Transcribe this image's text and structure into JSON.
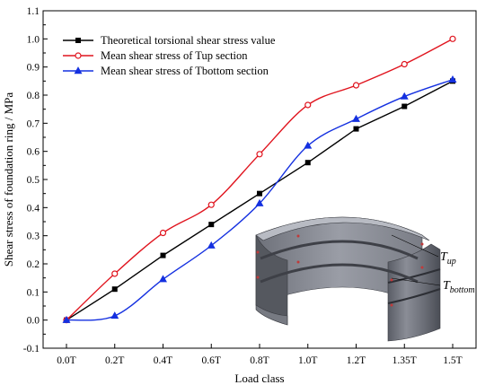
{
  "chart_data": {
    "type": "line",
    "xlabel": "Load class",
    "ylabel": "Shear stress of foundation ring / MPa",
    "categories": [
      "0.0T",
      "0.2T",
      "0.4T",
      "0.6T",
      "0.8T",
      "1.0T",
      "1.2T",
      "1.35T",
      "1.5T"
    ],
    "ylim": [
      -0.1,
      1.1
    ],
    "yticks": [
      -0.1,
      0.0,
      0.1,
      0.2,
      0.3,
      0.4,
      0.5,
      0.6,
      0.7,
      0.8,
      0.9,
      1.0,
      1.1
    ],
    "ytick_labels": [
      "-0.1",
      "0.0",
      "0.1",
      "0.2",
      "0.3",
      "0.4",
      "0.5",
      "0.6",
      "0.7",
      "0.8",
      "0.9",
      "1.0",
      "1.1"
    ],
    "grid": false,
    "legend_position": "top-left",
    "series": [
      {
        "name": "Theoretical torsional shear stress value",
        "color": "#000000",
        "marker": "square",
        "values": [
          0.0,
          0.11,
          0.23,
          0.34,
          0.45,
          0.56,
          0.68,
          0.76,
          0.85
        ]
      },
      {
        "name": "Mean shear stress of Tup section",
        "color": "#e0141e",
        "marker": "circle",
        "values": [
          0.0,
          0.165,
          0.31,
          0.41,
          0.59,
          0.765,
          0.835,
          0.91,
          1.0
        ]
      },
      {
        "name": "Mean shear stress of Tbottom section",
        "color": "#1430e0",
        "marker": "triangle",
        "values": [
          0.0,
          0.015,
          0.145,
          0.265,
          0.415,
          0.62,
          0.715,
          0.795,
          0.855
        ]
      }
    ]
  },
  "inset": {
    "label_up": "T",
    "label_up_sub": "up",
    "label_bottom": "T",
    "label_bottom_sub": "bottom"
  }
}
